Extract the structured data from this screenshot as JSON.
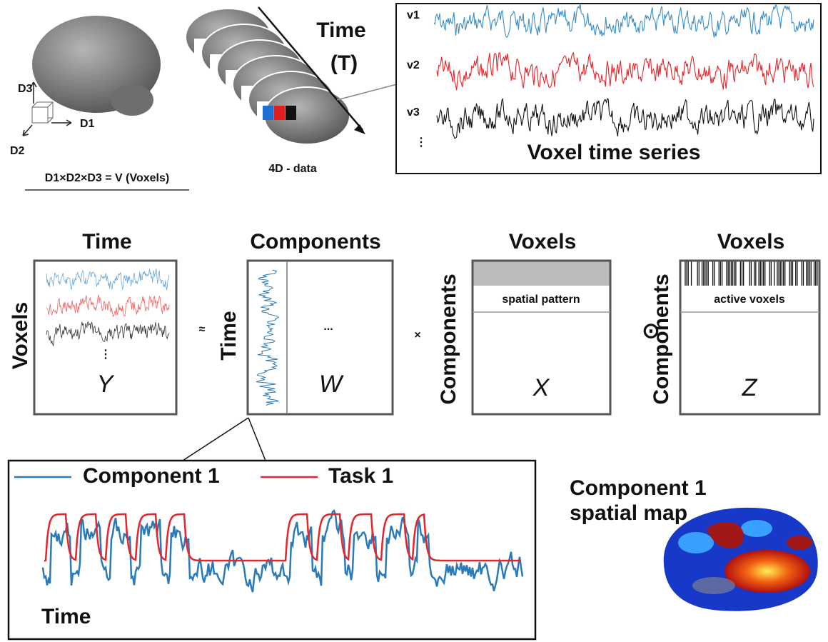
{
  "volume": {
    "axes": [
      "D3",
      "D1",
      "D2"
    ],
    "formula": "D1×D2×D3 = V (Voxels)"
  },
  "data4d": {
    "label": "4D - data",
    "time_label": [
      "Time",
      "(T)"
    ]
  },
  "voxel_series": {
    "rows": [
      "v1",
      "v2",
      "v3",
      "⋮"
    ],
    "title": "Voxel time series"
  },
  "factorization": {
    "matrices": [
      {
        "col": "Time",
        "row": "Voxels",
        "symbol": "Y",
        "more": "⋮"
      },
      {
        "col": "Components",
        "row": "Time",
        "symbol": "W",
        "ellipsis": "..."
      },
      {
        "col": "Voxels",
        "row": "Components",
        "symbol": "X",
        "band": "spatial pattern"
      },
      {
        "col": "Voxels",
        "row": "Components",
        "symbol": "Z",
        "band": "active voxels"
      }
    ],
    "operators": [
      "≈",
      "×",
      "⊙"
    ]
  },
  "zoom": {
    "legend": [
      "Component 1",
      "Task 1"
    ],
    "x_label": "Time"
  },
  "spatial_map": {
    "title": [
      "Component 1",
      "spatial map"
    ]
  }
}
